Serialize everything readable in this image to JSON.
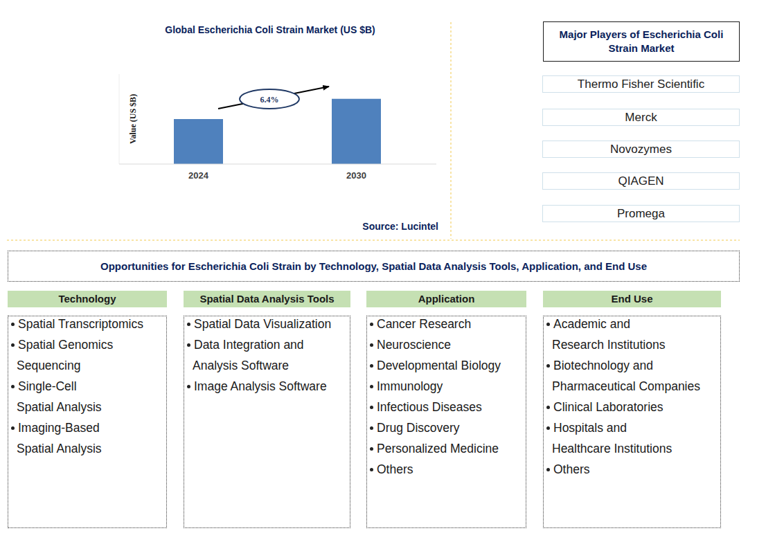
{
  "chart_data": {
    "type": "bar",
    "title": "Global Escherichia Coli Strain Market (US $B)",
    "y_label": "Value (US $B)",
    "categories": [
      "2024",
      "2030"
    ],
    "values": [
      2.0,
      2.9
    ],
    "color": "#4f81bd",
    "ylim": [
      0,
      4
    ],
    "grid": false,
    "tick_labels": "x",
    "annotation": "6.4%",
    "source": "Source: Lucintel"
  },
  "players": {
    "title": [
      "Major Players of Escherichia Coli",
      "Strain Market"
    ],
    "items": [
      "Thermo Fisher Scientific",
      "Merck",
      "Novozymes",
      "QIAGEN",
      "Promega"
    ]
  },
  "opportunities": {
    "title": "Opportunities for Escherichia Coli Strain by Technology, Spatial Data Analysis Tools, Application, and End Use",
    "columns": [
      {
        "header": "Technology",
        "items": [
          [
            "Spatial Transcriptomics"
          ],
          [
            "Spatial Genomics",
            "Sequencing"
          ],
          [
            "Single-Cell",
            "Spatial Analysis"
          ],
          [
            "Imaging-Based",
            "Spatial Analysis"
          ]
        ]
      },
      {
        "header": "Spatial Data Analysis Tools",
        "items": [
          [
            "Spatial Data Visualization"
          ],
          [
            "Data Integration and",
            "Analysis Software"
          ],
          [
            "Image Analysis Software"
          ]
        ]
      },
      {
        "header": "Application",
        "items": [
          [
            "Cancer Research"
          ],
          [
            "Neuroscience"
          ],
          [
            "Developmental Biology"
          ],
          [
            "Immunology"
          ],
          [
            "Infectious Diseases"
          ],
          [
            "Drug Discovery"
          ],
          [
            "Personalized Medicine"
          ],
          [
            "Others"
          ]
        ]
      },
      {
        "header": "End Use",
        "items": [
          [
            "Academic and",
            "Research Institutions"
          ],
          [
            "Biotechnology and",
            "Pharmaceutical Companies"
          ],
          [
            "Clinical Laboratories"
          ],
          [
            "Hospitals and",
            "Healthcare Institutions"
          ],
          [
            "Others"
          ]
        ]
      }
    ]
  }
}
